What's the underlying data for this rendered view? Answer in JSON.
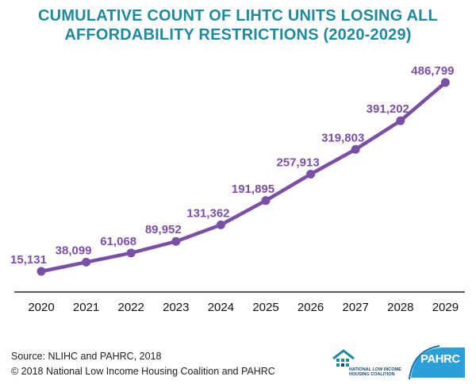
{
  "chart_data": {
    "type": "line",
    "title_lines": [
      "CUMULATIVE COUNT OF LIHTC UNITS LOSING ALL",
      "AFFORDABILITY RESTRICTIONS (2020-2029)"
    ],
    "categories": [
      "2020",
      "2021",
      "2022",
      "2023",
      "2024",
      "2025",
      "2026",
      "2027",
      "2028",
      "2029"
    ],
    "values": [
      15131,
      38099,
      61068,
      89952,
      131362,
      191895,
      257913,
      319803,
      391202,
      486799
    ],
    "data_labels": [
      "15,131",
      "38,099",
      "61,068",
      "89,952",
      "131,362",
      "191,895",
      "257,913",
      "319,803",
      "391,202",
      "486,799"
    ],
    "xlabel": "",
    "ylabel": "",
    "grid": false,
    "legend": "none",
    "line_color": "#7b4fa6"
  },
  "footer": {
    "source": "Source: NLIHC and PAHRC, 2018",
    "copyright": "© 2018 National Low Income Housing Coalition and PAHRC"
  },
  "logos": {
    "nlihc_line1": "NATIONAL LOW INCOME",
    "nlihc_line2": "HOUSING COALITION",
    "pahrc": "PAHRC"
  }
}
